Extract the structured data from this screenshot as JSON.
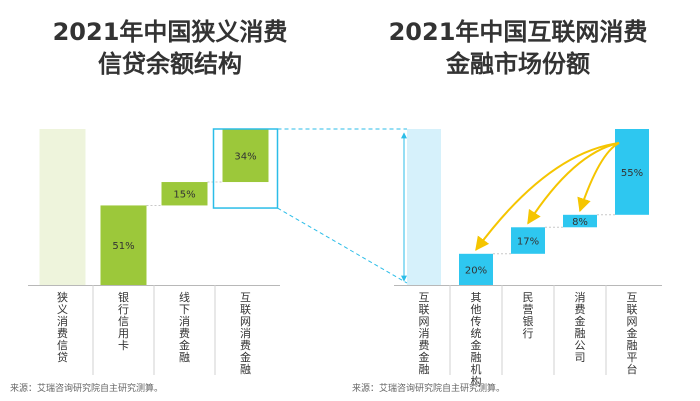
{
  "chart_data": [
    {
      "type": "bar",
      "subtype": "waterfall",
      "title": "2021年中国狭义消费\n信贷余额结构",
      "categories": [
        "狭义消费信贷",
        "银行信用卡",
        "线下消费金融",
        "互联网消费金融"
      ],
      "values": [
        100,
        51,
        15,
        34
      ],
      "value_labels": [
        "",
        "51%",
        "15%",
        "34%"
      ],
      "total_category": "狭义消费信贷",
      "highlighted_category": "互联网消费金融",
      "ylim": [
        0,
        100
      ],
      "grid": false,
      "source": "来源：艾瑞咨询研究院自主研究测算。",
      "colors": {
        "total": "#eef4dc",
        "component": "#9cc83a",
        "highlight_border": "#2bbde8"
      }
    },
    {
      "type": "bar",
      "subtype": "waterfall",
      "title": "2021年中国互联网消费\n金融市场份额",
      "categories": [
        "互联网消费金融",
        "其他传统金融机构",
        "民营银行",
        "消费金融公司",
        "互联网金融平台"
      ],
      "values": [
        100,
        20,
        17,
        8,
        55
      ],
      "value_labels": [
        "",
        "20%",
        "17%",
        "8%",
        "55%"
      ],
      "total_category": "互联网消费金融",
      "ylim": [
        0,
        100
      ],
      "grid": false,
      "source": "来源：艾瑞咨询研究院自主研究测算。",
      "colors": {
        "total": "#d6f1fb",
        "component": "#2ec7f0",
        "arrow": "#f5c500"
      }
    }
  ]
}
